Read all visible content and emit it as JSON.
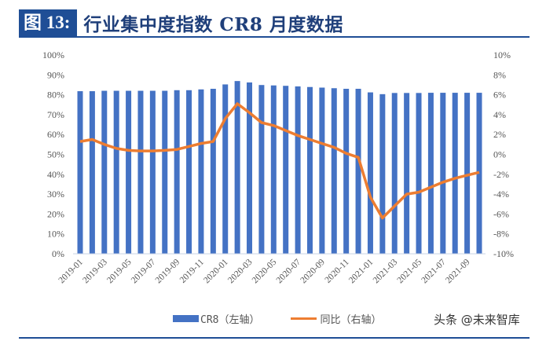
{
  "header": {
    "figure_label": "图 13:",
    "title": "行业集中度指数 CR8 月度数据"
  },
  "legend": {
    "bar_label": "CR8（左轴）",
    "line_label": "同比（右轴）"
  },
  "watermark": "头条 @未来智库",
  "colors": {
    "bar": "#4472c4",
    "line": "#ed7d31",
    "title_bg": "#1f4e96"
  },
  "chart_data": {
    "type": "bar+line",
    "title": "行业集中度指数 CR8 月度数据",
    "categories": [
      "2019-01",
      "2019-02",
      "2019-03",
      "2019-04",
      "2019-05",
      "2019-06",
      "2019-07",
      "2019-08",
      "2019-09",
      "2019-10",
      "2019-11",
      "2019-12",
      "2020-01",
      "2020-02",
      "2020-03",
      "2020-04",
      "2020-05",
      "2020-06",
      "2020-07",
      "2020-08",
      "2020-09",
      "2020-10",
      "2020-11",
      "2020-12",
      "2021-01",
      "2021-02",
      "2021-03",
      "2021-04",
      "2021-05",
      "2021-06",
      "2021-07",
      "2021-08",
      "2021-09",
      "2021-10"
    ],
    "x_tick_labels": [
      "2019-01",
      "2019-03",
      "2019-05",
      "2019-07",
      "2019-09",
      "2019-11",
      "2020-01",
      "2020-03",
      "2020-05",
      "2020-07",
      "2020-09",
      "2020-11",
      "2021-01",
      "2021-03",
      "2021-05",
      "2021-07",
      "2021-09"
    ],
    "series": [
      {
        "name": "CR8（左轴）",
        "type": "bar",
        "axis": "left",
        "values": [
          81.8,
          81.8,
          82.0,
          82.0,
          82.0,
          82.0,
          82.0,
          82.0,
          82.3,
          82.3,
          82.7,
          83.0,
          85.2,
          86.9,
          86.2,
          84.9,
          84.7,
          84.5,
          84.2,
          83.9,
          83.6,
          83.3,
          83.0,
          83.0,
          81.2,
          80.3,
          80.9,
          80.9,
          80.9,
          81.0,
          81.0,
          81.0,
          81.0,
          81.0
        ]
      },
      {
        "name": "同比（右轴）",
        "type": "line",
        "axis": "right",
        "values": [
          1.3,
          1.5,
          1.0,
          0.6,
          0.4,
          0.35,
          0.35,
          0.4,
          0.5,
          0.8,
          1.1,
          1.3,
          3.6,
          5.1,
          4.2,
          3.2,
          2.9,
          2.4,
          1.9,
          1.5,
          1.1,
          0.7,
          0.1,
          -0.3,
          -4.3,
          -6.4,
          -5.2,
          -4.0,
          -3.8,
          -3.3,
          -2.8,
          -2.4,
          -2.1,
          -1.8
        ]
      }
    ],
    "left_axis": {
      "ticks": [
        "0%",
        "10%",
        "20%",
        "30%",
        "40%",
        "50%",
        "60%",
        "70%",
        "80%",
        "90%",
        "100%"
      ],
      "ylim": [
        0,
        100
      ]
    },
    "right_axis": {
      "ticks": [
        "-10%",
        "-8%",
        "-6%",
        "-4%",
        "-2%",
        "0%",
        "2%",
        "4%",
        "6%",
        "8%",
        "10%"
      ],
      "ylim": [
        -10,
        10
      ]
    },
    "xlabel": "",
    "ylabel": "",
    "grid": false,
    "legend_position": "bottom"
  }
}
